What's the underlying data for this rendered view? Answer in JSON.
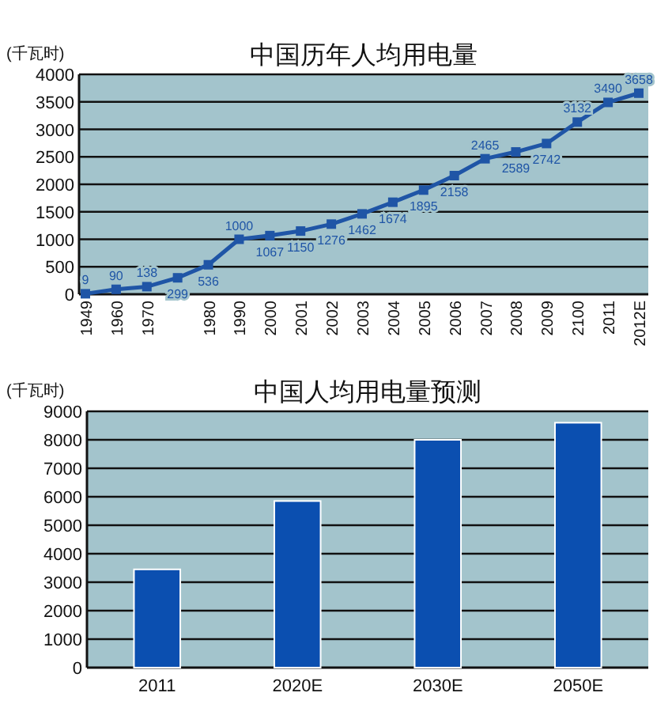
{
  "chart_data": [
    {
      "type": "line",
      "title": "中国历年人均用电量",
      "ylabel": "(千瓦时)",
      "categories": [
        "1949",
        "1960",
        "1970",
        null,
        "1980",
        "1990",
        "2000",
        "2001",
        "2002",
        "2003",
        "2004",
        "2005",
        "2006",
        "2007",
        "2008",
        "2009",
        "2100",
        "2011",
        "2012E"
      ],
      "series": [
        {
          "color": "#1f55a6",
          "values": [
            9,
            90,
            138,
            299,
            536,
            1000,
            1067,
            1150,
            1276,
            1462,
            1674,
            1895,
            2158,
            2465,
            2589,
            2742,
            3132,
            3490,
            3658
          ]
        }
      ],
      "ylim": [
        0,
        4000
      ],
      "yticks": [
        0,
        500,
        1000,
        1500,
        2000,
        2500,
        3000,
        3500,
        4000
      ],
      "grid": "y",
      "marker": "square",
      "line_style": "solid",
      "data_labels": true
    },
    {
      "type": "bar",
      "title": "中国人均用电量预测",
      "ylabel": "(千瓦时)",
      "categories": [
        "2011",
        "2020E",
        "2030E",
        "2050E"
      ],
      "series": [
        {
          "color": "#0b4fb0",
          "values": [
            3450,
            5850,
            8000,
            8600
          ]
        }
      ],
      "ylim": [
        0,
        9000
      ],
      "yticks": [
        0,
        1000,
        2000,
        3000,
        4000,
        5000,
        6000,
        7000,
        8000,
        9000
      ],
      "grid": "y"
    }
  ]
}
